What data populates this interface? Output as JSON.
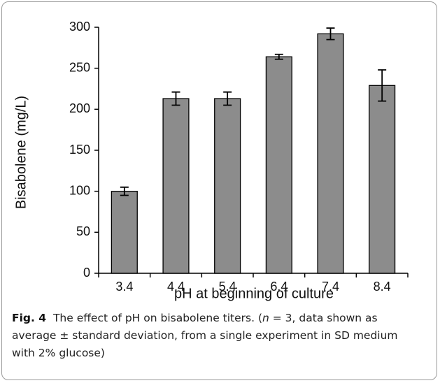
{
  "chart_data": {
    "type": "bar",
    "xlabel": "pH at beginning of culture",
    "ylabel": "Bisabolene (mg/L)",
    "categories": [
      "3.4",
      "4.4",
      "5.4",
      "6.4",
      "7.4",
      "8.4"
    ],
    "values": [
      100,
      213,
      213,
      264,
      292,
      229
    ],
    "errors": [
      5,
      8,
      8,
      3,
      7,
      19
    ],
    "color": "#8c8c8c",
    "ylim": [
      0,
      300
    ],
    "yticks": [
      0,
      50,
      100,
      150,
      200,
      250,
      300
    ]
  },
  "caption": {
    "label": "Fig. 4",
    "parts": [
      "The effect of pH on bisabolene titers. (",
      "n",
      " = 3, data shown as average ± standard deviation, from a single experiment in SD medium with 2% glucose)"
    ]
  }
}
